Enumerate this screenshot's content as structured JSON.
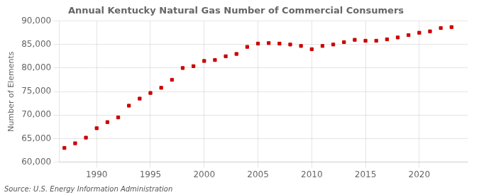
{
  "chart_data": {
    "type": "scatter",
    "title": "Annual Kentucky Natural Gas Number of Commercial Consumers",
    "ylabel": "Number of Elements",
    "source": "Source: U.S. Energy Information Administration",
    "color": "#cc0000",
    "marker": "square",
    "x": [
      1987,
      1988,
      1989,
      1990,
      1991,
      1992,
      1993,
      1994,
      1995,
      1996,
      1997,
      1998,
      1999,
      2000,
      2001,
      2002,
      2003,
      2004,
      2005,
      2006,
      2007,
      2008,
      2009,
      2010,
      2011,
      2012,
      2013,
      2014,
      2015,
      2016,
      2017,
      2018,
      2019,
      2020,
      2021,
      2022,
      2023
    ],
    "values": [
      63000,
      64000,
      65200,
      67200,
      68500,
      69500,
      72000,
      73500,
      74700,
      75800,
      77500,
      80000,
      80400,
      81500,
      81700,
      82500,
      83000,
      84500,
      85200,
      85300,
      85200,
      85000,
      84700,
      84000,
      84700,
      85000,
      85500,
      86000,
      85800,
      85800,
      86100,
      86500,
      87000,
      87500,
      87800,
      88500,
      88700
    ],
    "xlim": [
      1986.5,
      2024.5
    ],
    "xticks": [
      1990,
      1995,
      2000,
      2005,
      2010,
      2015,
      2020
    ],
    "ylim": [
      60000,
      90000
    ],
    "yticks": [
      {
        "value": 60000,
        "label": "60,000"
      },
      {
        "value": 65000,
        "label": "65,000"
      },
      {
        "value": 70000,
        "label": "70,000"
      },
      {
        "value": 75000,
        "label": "75,000"
      },
      {
        "value": 80000,
        "label": "80,000"
      },
      {
        "value": 85000,
        "label": "85,000"
      },
      {
        "value": 90000,
        "label": "90,000"
      }
    ],
    "grid": true
  }
}
